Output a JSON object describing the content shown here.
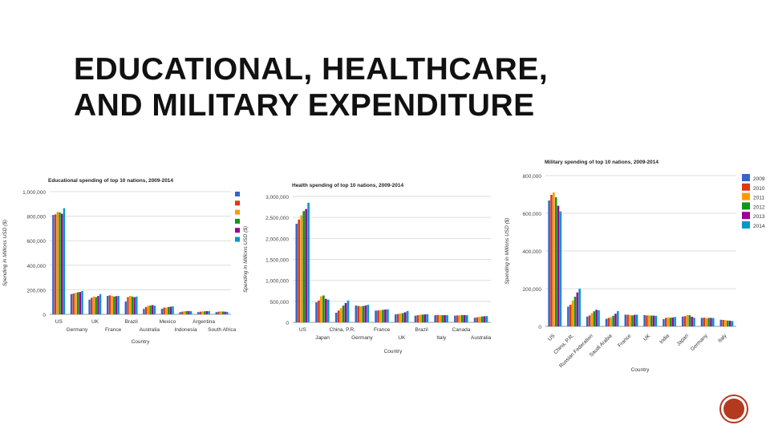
{
  "slide": {
    "title": "EDUCATIONAL, HEALTHCARE, AND MILITARY EXPENDITURE",
    "page_badge_color": "#b33a1f"
  },
  "chart_data": [
    {
      "type": "bar",
      "title": "Educational spending of top 10 nations, 2009-2014",
      "xlabel": "Country",
      "ylabel": "Spending in Millions USD ($)",
      "ylim": [
        0,
        1000000
      ],
      "yticks": [
        "0",
        "200,000",
        "400,000",
        "600,000",
        "800,000",
        "1,000,000"
      ],
      "grid": true,
      "legend_position": "right",
      "categories": [
        "US",
        "Germany",
        "UK",
        "France",
        "Brazil",
        "Australia",
        "Mexico",
        "Indonesia",
        "Argentina",
        "South Africa"
      ],
      "series_colors": [
        "#3366cc",
        "#dc3912",
        "#ff9900",
        "#109618",
        "#990099",
        "#0099c6"
      ],
      "series": [
        {
          "values": [
            810000,
            165000,
            120000,
            150000,
            105000,
            45000,
            45000,
            18000,
            18000,
            18000
          ]
        },
        {
          "values": [
            815000,
            170000,
            135000,
            155000,
            140000,
            60000,
            55000,
            22000,
            22000,
            22000
          ]
        },
        {
          "values": [
            835000,
            175000,
            145000,
            150000,
            150000,
            70000,
            55000,
            25000,
            24000,
            24000
          ]
        },
        {
          "values": [
            830000,
            180000,
            140000,
            145000,
            145000,
            72000,
            60000,
            26000,
            25000,
            23000
          ]
        },
        {
          "values": [
            820000,
            182000,
            150000,
            148000,
            140000,
            75000,
            62000,
            27000,
            26000,
            22000
          ]
        },
        {
          "values": [
            865000,
            190000,
            165000,
            150000,
            145000,
            70000,
            65000,
            25000,
            26000,
            20000
          ]
        }
      ]
    },
    {
      "type": "bar",
      "title": "Health spending of top 10 nations, 2009-2014",
      "xlabel": "Country",
      "ylabel": "Spending in Millions USD ($)",
      "ylim": [
        0,
        3000000
      ],
      "yticks": [
        "0",
        "500,000",
        "1,000,000",
        "1,500,000",
        "2,000,000",
        "2,500,000",
        "3,000,000"
      ],
      "grid": true,
      "categories": [
        "US",
        "Japan",
        "China, P.R.",
        "Germany",
        "France",
        "UK",
        "Brazil",
        "Italy",
        "Canada",
        "Australia"
      ],
      "series_colors": [
        "#3366cc",
        "#dc3912",
        "#ff9900",
        "#109618",
        "#990099",
        "#0099c6"
      ],
      "series": [
        {
          "values": [
            2350000,
            480000,
            230000,
            400000,
            280000,
            190000,
            160000,
            170000,
            160000,
            110000
          ]
        },
        {
          "values": [
            2450000,
            520000,
            280000,
            390000,
            285000,
            200000,
            170000,
            175000,
            165000,
            120000
          ]
        },
        {
          "values": [
            2550000,
            620000,
            340000,
            380000,
            290000,
            210000,
            180000,
            175000,
            170000,
            130000
          ]
        },
        {
          "values": [
            2650000,
            640000,
            400000,
            390000,
            300000,
            220000,
            185000,
            170000,
            175000,
            140000
          ]
        },
        {
          "values": [
            2700000,
            560000,
            460000,
            400000,
            305000,
            240000,
            190000,
            172000,
            172000,
            145000
          ]
        },
        {
          "values": [
            2850000,
            540000,
            520000,
            420000,
            310000,
            270000,
            195000,
            170000,
            170000,
            150000
          ]
        }
      ]
    },
    {
      "type": "bar",
      "title": "Military spending of top 10 nations, 2009-2014",
      "xlabel": "Country",
      "ylabel": "Spending in Millions USD ($)",
      "ylim": [
        0,
        800000
      ],
      "yticks": [
        "0",
        "200,000",
        "400,000",
        "600,000",
        "800,000"
      ],
      "grid": true,
      "legend_position": "right",
      "categories": [
        "US",
        "China, P.R.",
        "Russian Federation",
        "Saudi Arabia",
        "France",
        "UK",
        "India",
        "Japan",
        "Germany",
        "Italy"
      ],
      "series_colors": [
        "#3366cc",
        "#dc3912",
        "#ff9900",
        "#109618",
        "#990099",
        "#0099c6"
      ],
      "series": [
        {
          "name": "2009",
          "values": [
            668000,
            105000,
            52000,
            40000,
            62000,
            60000,
            38000,
            52000,
            45000,
            35000
          ]
        },
        {
          "name": "2010",
          "values": [
            698000,
            115000,
            58000,
            45000,
            62000,
            58000,
            45000,
            54000,
            46000,
            34000
          ]
        },
        {
          "name": "2011",
          "values": [
            711000,
            137000,
            70000,
            48000,
            60000,
            58000,
            47000,
            60000,
            44000,
            33000
          ]
        },
        {
          "name": "2012",
          "values": [
            685000,
            157000,
            80000,
            56000,
            58000,
            57000,
            46000,
            59000,
            45000,
            31000
          ]
        },
        {
          "name": "2013",
          "values": [
            640000,
            180000,
            88000,
            67000,
            61000,
            57000,
            47000,
            51000,
            45000,
            30000
          ]
        },
        {
          "name": "2014",
          "values": [
            610000,
            200000,
            85000,
            81000,
            62000,
            56000,
            50000,
            46000,
            44000,
            28000
          ]
        }
      ]
    }
  ]
}
